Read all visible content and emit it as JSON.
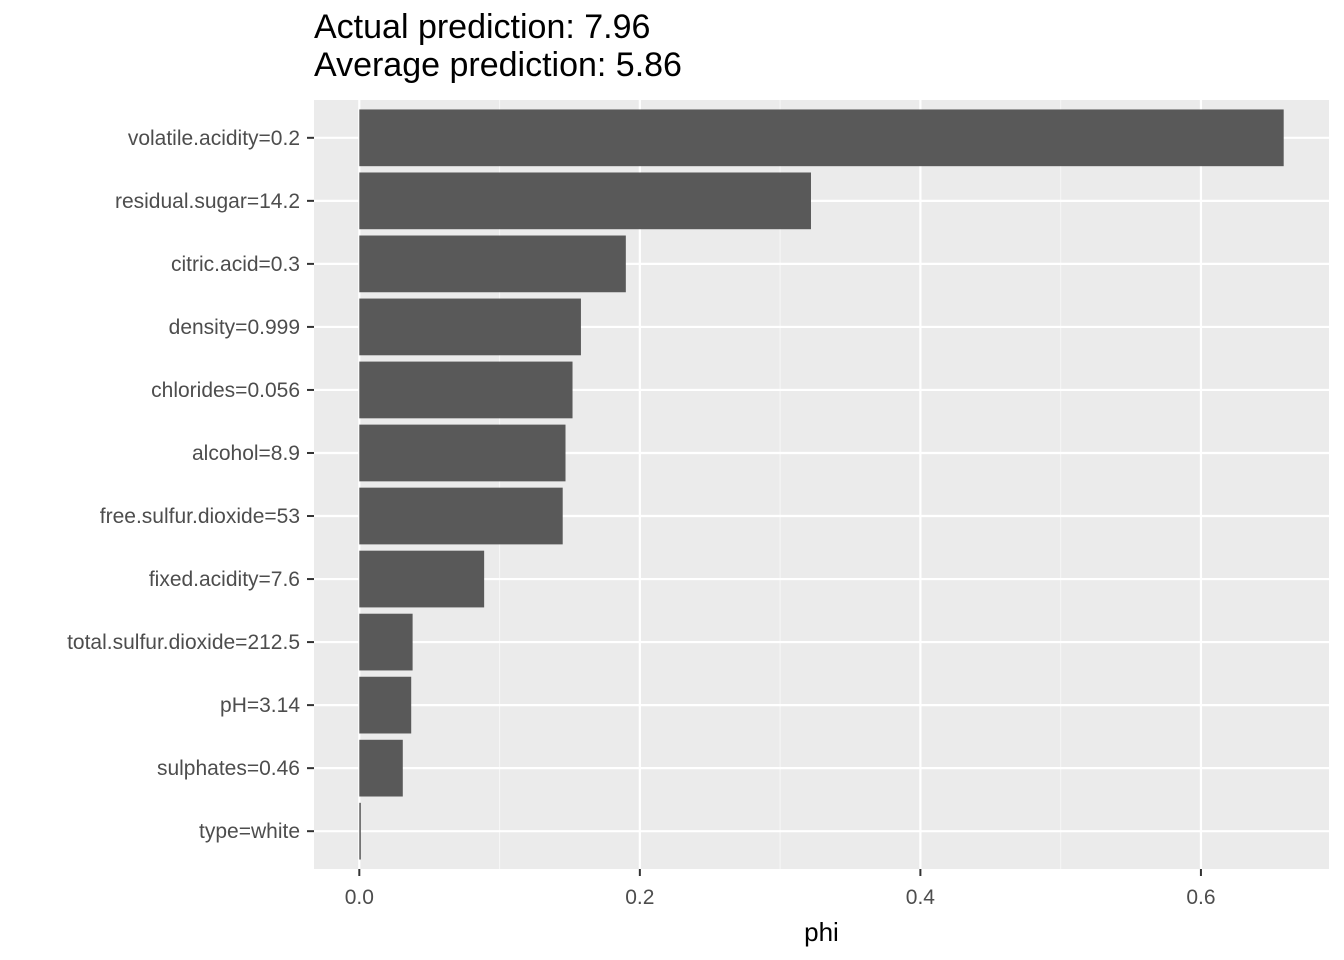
{
  "chart_data": {
    "type": "bar",
    "orientation": "horizontal",
    "title_lines": [
      "Actual prediction: 7.96",
      "Average prediction: 5.86"
    ],
    "xlabel": "phi",
    "ylabel": "",
    "categories": [
      "volatile.acidity=0.2",
      "residual.sugar=14.2",
      "citric.acid=0.3",
      "density=0.999",
      "chlorides=0.056",
      "alcohol=8.9",
      "free.sulfur.dioxide=53",
      "fixed.acidity=7.6",
      "total.sulfur.dioxide=212.5",
      "pH=3.14",
      "sulphates=0.46",
      "type=white"
    ],
    "values": [
      0.659,
      0.322,
      0.19,
      0.158,
      0.152,
      0.147,
      0.145,
      0.089,
      0.038,
      0.037,
      0.031,
      0.001
    ],
    "xlim": [
      -0.0323,
      0.6913
    ],
    "x_ticks": [
      0.0,
      0.2,
      0.4,
      0.6
    ],
    "x_tick_labels": [
      "0.0",
      "0.2",
      "0.4",
      "0.6"
    ],
    "grid": true,
    "colors": {
      "bar": "#595959",
      "panel_background": "#ebebeb",
      "grid_major": "#ffffff",
      "grid_minor": "#f5f5f5",
      "tick_text": "#4d4d4d",
      "tick_mark": "#333333"
    }
  }
}
